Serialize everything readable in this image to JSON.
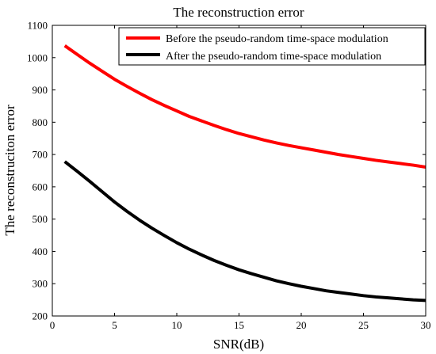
{
  "chart_data": {
    "type": "line",
    "title": "The reconstruction error",
    "xlabel": "SNR(dB)",
    "ylabel": "The reconstruciton error",
    "xlim": [
      0,
      30
    ],
    "ylim": [
      200,
      1100
    ],
    "xticks": [
      0,
      5,
      10,
      15,
      20,
      25,
      30
    ],
    "yticks": [
      200,
      300,
      400,
      500,
      600,
      700,
      800,
      900,
      1000,
      1100
    ],
    "grid": false,
    "legend_position": "top-right",
    "x": [
      1,
      2,
      3,
      4,
      5,
      6,
      7,
      8,
      9,
      10,
      11,
      12,
      13,
      14,
      15,
      16,
      17,
      18,
      19,
      20,
      21,
      22,
      23,
      24,
      25,
      26,
      27,
      28,
      29,
      30
    ],
    "series": [
      {
        "name": "Before the pseudo-random time-space modulation",
        "color": "#ff0000",
        "values": [
          1037,
          1010,
          983,
          958,
          933,
          911,
          890,
          870,
          852,
          835,
          818,
          804,
          790,
          777,
          765,
          755,
          745,
          736,
          728,
          721,
          714,
          707,
          700,
          694,
          688,
          682,
          677,
          672,
          667,
          661
        ]
      },
      {
        "name": "After the pseudo-random time-space modulation",
        "color": "#000000",
        "values": [
          678,
          648,
          617,
          585,
          553,
          524,
          497,
          472,
          449,
          427,
          407,
          389,
          372,
          357,
          343,
          331,
          320,
          309,
          300,
          292,
          285,
          278,
          273,
          268,
          263,
          259,
          256,
          253,
          250,
          248
        ]
      }
    ]
  }
}
